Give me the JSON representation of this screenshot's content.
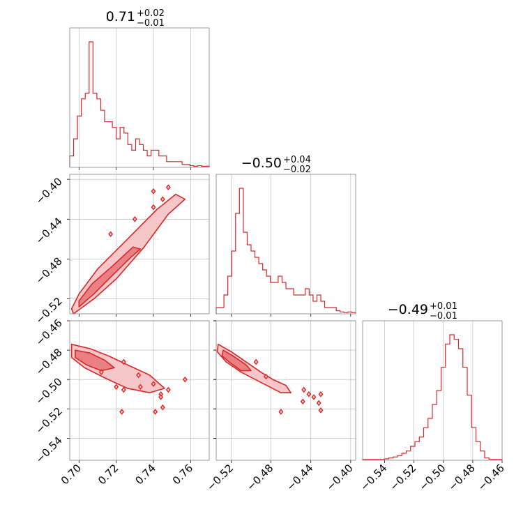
{
  "chart_data": {
    "type": "corner",
    "color": "#d62728",
    "fill_light": "#f7c6c8",
    "fill_mid": "#ea8083",
    "grid": true,
    "parameters": [
      {
        "title_center": "0.71",
        "title_plus": "+0.02",
        "title_minus": "−0.01",
        "range": [
          0.695,
          0.77
        ],
        "ticks": [
          0.7,
          0.72,
          0.74,
          0.76
        ],
        "tick_labels": [
          "0.70",
          "0.72",
          "0.74",
          "0.76"
        ]
      },
      {
        "title_center": "−0.50",
        "title_plus": "+0.04",
        "title_minus": "−0.02",
        "range": [
          -0.535,
          -0.395
        ],
        "ticks": [
          -0.52,
          -0.48,
          -0.44,
          -0.4
        ],
        "tick_labels": [
          "−0.52",
          "−0.48",
          "−0.44",
          "−0.40"
        ]
      },
      {
        "title_center": "−0.49",
        "title_plus": "+0.01",
        "title_minus": "−0.01",
        "range": [
          -0.555,
          -0.46
        ],
        "ticks": [
          -0.54,
          -0.52,
          -0.5,
          -0.48,
          -0.46
        ],
        "tick_labels": [
          "−0.54",
          "−0.52",
          "−0.50",
          "−0.48",
          "−0.46"
        ]
      }
    ],
    "histograms": [
      {
        "param": 0,
        "range": [
          0.695,
          0.77
        ],
        "counts": [
          2,
          5,
          9,
          12,
          13,
          22,
          13,
          12,
          10,
          8,
          8,
          7,
          5,
          7,
          6,
          4,
          3,
          5,
          4,
          3,
          2,
          3,
          3,
          2,
          2,
          1,
          1,
          1,
          1,
          0.5,
          0.5,
          0.3,
          0.2,
          0.3,
          0.2,
          0.2
        ]
      },
      {
        "param": 1,
        "range": [
          -0.535,
          -0.395
        ],
        "counts": [
          1,
          1,
          3,
          6,
          10,
          16,
          20,
          13,
          11,
          10,
          9,
          8,
          7,
          6,
          5,
          5,
          6,
          5,
          4,
          4,
          3,
          3,
          3,
          4,
          3,
          2,
          3,
          2,
          1,
          1,
          1,
          0.5,
          0.3,
          0.2,
          0.3,
          0.2
        ]
      },
      {
        "param": 2,
        "range": [
          -0.555,
          -0.46
        ],
        "counts": [
          0.2,
          0.2,
          0.2,
          0.2,
          0.2,
          0.3,
          0.5,
          0.7,
          1,
          1.5,
          2,
          3,
          4,
          5,
          7,
          9,
          12,
          15,
          20,
          25,
          27,
          26,
          24,
          20,
          14,
          7,
          4,
          2,
          0.5,
          0.2,
          0.2,
          0.2
        ]
      }
    ],
    "pairs": [
      {
        "x_param": 0,
        "y_param": 1,
        "outer_contour": [
          [
            0.697,
            -0.535
          ],
          [
            0.708,
            -0.52
          ],
          [
            0.72,
            -0.5
          ],
          [
            0.735,
            -0.468
          ],
          [
            0.748,
            -0.435
          ],
          [
            0.757,
            -0.42
          ],
          [
            0.752,
            -0.415
          ],
          [
            0.742,
            -0.43
          ],
          [
            0.725,
            -0.462
          ],
          [
            0.71,
            -0.49
          ],
          [
            0.7,
            -0.515
          ],
          [
            0.696,
            -0.53
          ]
        ],
        "inner_contour": [
          [
            0.7,
            -0.528
          ],
          [
            0.708,
            -0.515
          ],
          [
            0.716,
            -0.5
          ],
          [
            0.728,
            -0.478
          ],
          [
            0.733,
            -0.47
          ],
          [
            0.729,
            -0.468
          ],
          [
            0.718,
            -0.487
          ],
          [
            0.707,
            -0.505
          ],
          [
            0.7,
            -0.522
          ]
        ],
        "islands": [
          [
            0.745,
            -0.42
          ],
          [
            0.74,
            -0.428
          ],
          [
            0.73,
            -0.44
          ],
          [
            0.717,
            -0.455
          ],
          [
            0.74,
            -0.412
          ],
          [
            0.748,
            -0.408
          ]
        ]
      },
      {
        "x_param": 0,
        "y_param": 2,
        "outer_contour": [
          [
            0.696,
            -0.476
          ],
          [
            0.706,
            -0.479
          ],
          [
            0.716,
            -0.484
          ],
          [
            0.726,
            -0.49
          ],
          [
            0.738,
            -0.497
          ],
          [
            0.746,
            -0.506
          ],
          [
            0.738,
            -0.509
          ],
          [
            0.726,
            -0.506
          ],
          [
            0.714,
            -0.499
          ],
          [
            0.703,
            -0.492
          ],
          [
            0.696,
            -0.485
          ]
        ],
        "inner_contour": [
          [
            0.698,
            -0.48
          ],
          [
            0.706,
            -0.482
          ],
          [
            0.714,
            -0.487
          ],
          [
            0.719,
            -0.492
          ],
          [
            0.712,
            -0.494
          ],
          [
            0.704,
            -0.49
          ],
          [
            0.698,
            -0.485
          ]
        ],
        "islands": [
          [
            0.72,
            -0.505
          ],
          [
            0.724,
            -0.507
          ],
          [
            0.733,
            -0.505
          ],
          [
            0.74,
            -0.503
          ],
          [
            0.744,
            -0.51
          ],
          [
            0.757,
            -0.5
          ],
          [
            0.748,
            -0.507
          ],
          [
            0.723,
            -0.522
          ],
          [
            0.741,
            -0.522
          ],
          [
            0.745,
            -0.519
          ],
          [
            0.744,
            -0.512
          ],
          [
            0.712,
            -0.495
          ],
          [
            0.724,
            -0.488
          ],
          [
            0.732,
            -0.497
          ]
        ]
      },
      {
        "x_param": 1,
        "y_param": 2,
        "outer_contour": [
          [
            -0.533,
            -0.476
          ],
          [
            -0.52,
            -0.481
          ],
          [
            -0.505,
            -0.488
          ],
          [
            -0.49,
            -0.495
          ],
          [
            -0.478,
            -0.5
          ],
          [
            -0.465,
            -0.504
          ],
          [
            -0.46,
            -0.509
          ],
          [
            -0.47,
            -0.509
          ],
          [
            -0.49,
            -0.502
          ],
          [
            -0.51,
            -0.495
          ],
          [
            -0.525,
            -0.488
          ],
          [
            -0.534,
            -0.481
          ]
        ],
        "inner_contour": [
          [
            -0.528,
            -0.48
          ],
          [
            -0.518,
            -0.484
          ],
          [
            -0.505,
            -0.49
          ],
          [
            -0.5,
            -0.494
          ],
          [
            -0.51,
            -0.494
          ],
          [
            -0.522,
            -0.488
          ],
          [
            -0.529,
            -0.484
          ]
        ],
        "islands": [
          [
            -0.447,
            -0.507
          ],
          [
            -0.442,
            -0.51
          ],
          [
            -0.437,
            -0.512
          ],
          [
            -0.43,
            -0.51
          ],
          [
            -0.432,
            -0.516
          ],
          [
            -0.43,
            -0.521
          ],
          [
            -0.47,
            -0.522
          ],
          [
            -0.448,
            -0.515
          ],
          [
            -0.485,
            -0.498
          ],
          [
            -0.495,
            -0.488
          ]
        ]
      }
    ]
  }
}
